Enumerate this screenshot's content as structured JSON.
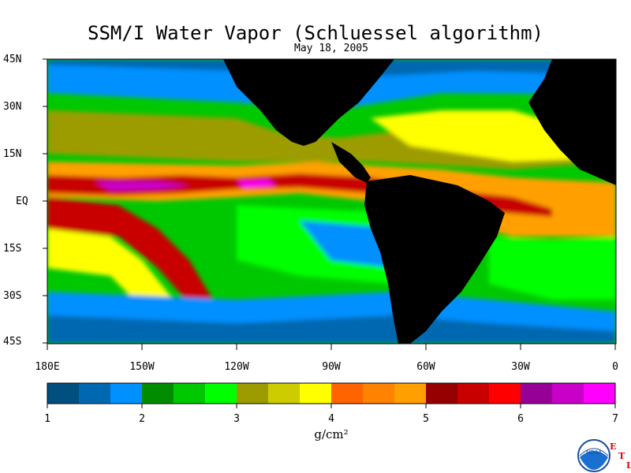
{
  "title": "SSM/I Water Vapor (Schluessel algorithm)",
  "date": "May 18, 2005",
  "lat_labels": [
    "45N",
    "30N",
    "15N",
    "EQ",
    "15S",
    "30S",
    "45S"
  ],
  "lon_labels": [
    "180E",
    "150W",
    "120W",
    "90W",
    "60W",
    "30W",
    "0"
  ],
  "colorbar": {
    "colors": [
      "#00507f",
      "#0068b0",
      "#0090ff",
      "#008c00",
      "#00c800",
      "#00ff00",
      "#9c9c00",
      "#cccc00",
      "#ffff00",
      "#ff6400",
      "#ff8200",
      "#ffa000",
      "#960000",
      "#c80000",
      "#ff0000",
      "#960096",
      "#c800c8",
      "#ff00ff"
    ],
    "labels": [
      "1",
      "2",
      "3",
      "4",
      "5",
      "6",
      "7"
    ],
    "units": "g/cm²"
  },
  "logo": {
    "name": "NOAA",
    "letters": [
      "E",
      "T",
      "L"
    ]
  },
  "land_color": "#000000"
}
